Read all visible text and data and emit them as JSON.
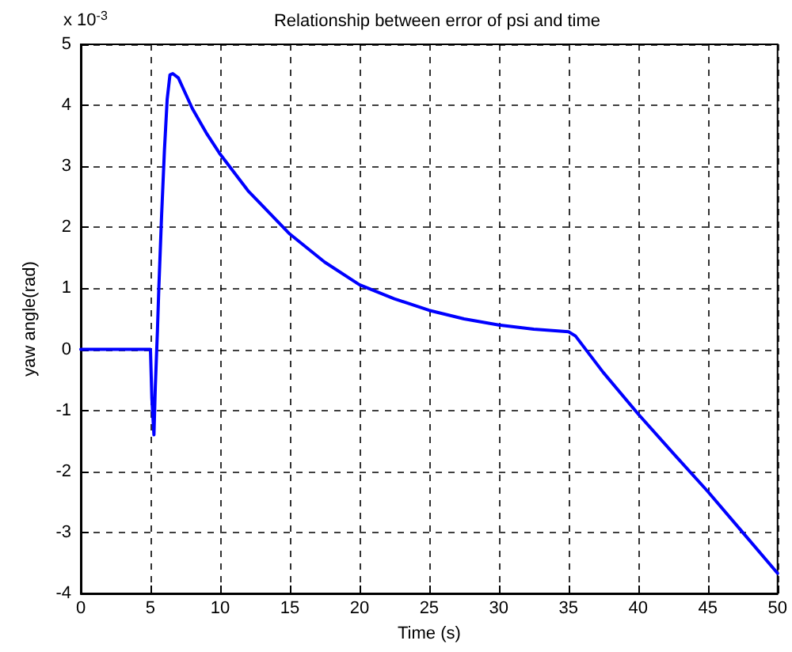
{
  "chart_data": {
    "type": "line",
    "title": "Relationship between error of psi and time",
    "xlabel": "Time (s)",
    "ylabel": "yaw angle(rad)",
    "annotations": [
      "x 10$^{-3}$"
    ],
    "x": [
      0,
      4.9,
      5.0,
      5.1,
      5.25,
      5.35,
      5.5,
      5.6,
      5.8,
      6.0,
      6.2,
      6.4,
      6.6,
      7.0,
      7.3,
      8,
      9,
      10,
      12,
      15,
      17.5,
      20,
      22.5,
      25,
      27.5,
      30,
      32.5,
      35,
      35.5,
      37.5,
      40,
      42.5,
      45,
      47.5,
      50
    ],
    "series": [
      {
        "color": "#0000ff",
        "values": [
          0,
          0,
          0,
          -0.8,
          -1.4,
          -0.6,
          0.3,
          1.0,
          2.2,
          3.25,
          4.1,
          4.5,
          4.52,
          4.45,
          4.3,
          3.95,
          3.55,
          3.2,
          2.6,
          1.89,
          1.43,
          1.06,
          0.83,
          0.64,
          0.5,
          0.4,
          0.33,
          0.29,
          0.22,
          -0.38,
          -1.06,
          -1.7,
          -2.33,
          -3.0,
          -3.67
        ]
      }
    ],
    "xlim": [
      0,
      50
    ],
    "xticks": [
      0,
      5,
      10,
      15,
      20,
      25,
      30,
      35,
      40,
      45,
      50
    ],
    "ylim": [
      -4,
      5
    ],
    "yticks": [
      -4,
      -3,
      -2,
      -1,
      0,
      1,
      2,
      3,
      4,
      5
    ],
    "grid": true,
    "marker": "none",
    "line_style": "solid"
  }
}
